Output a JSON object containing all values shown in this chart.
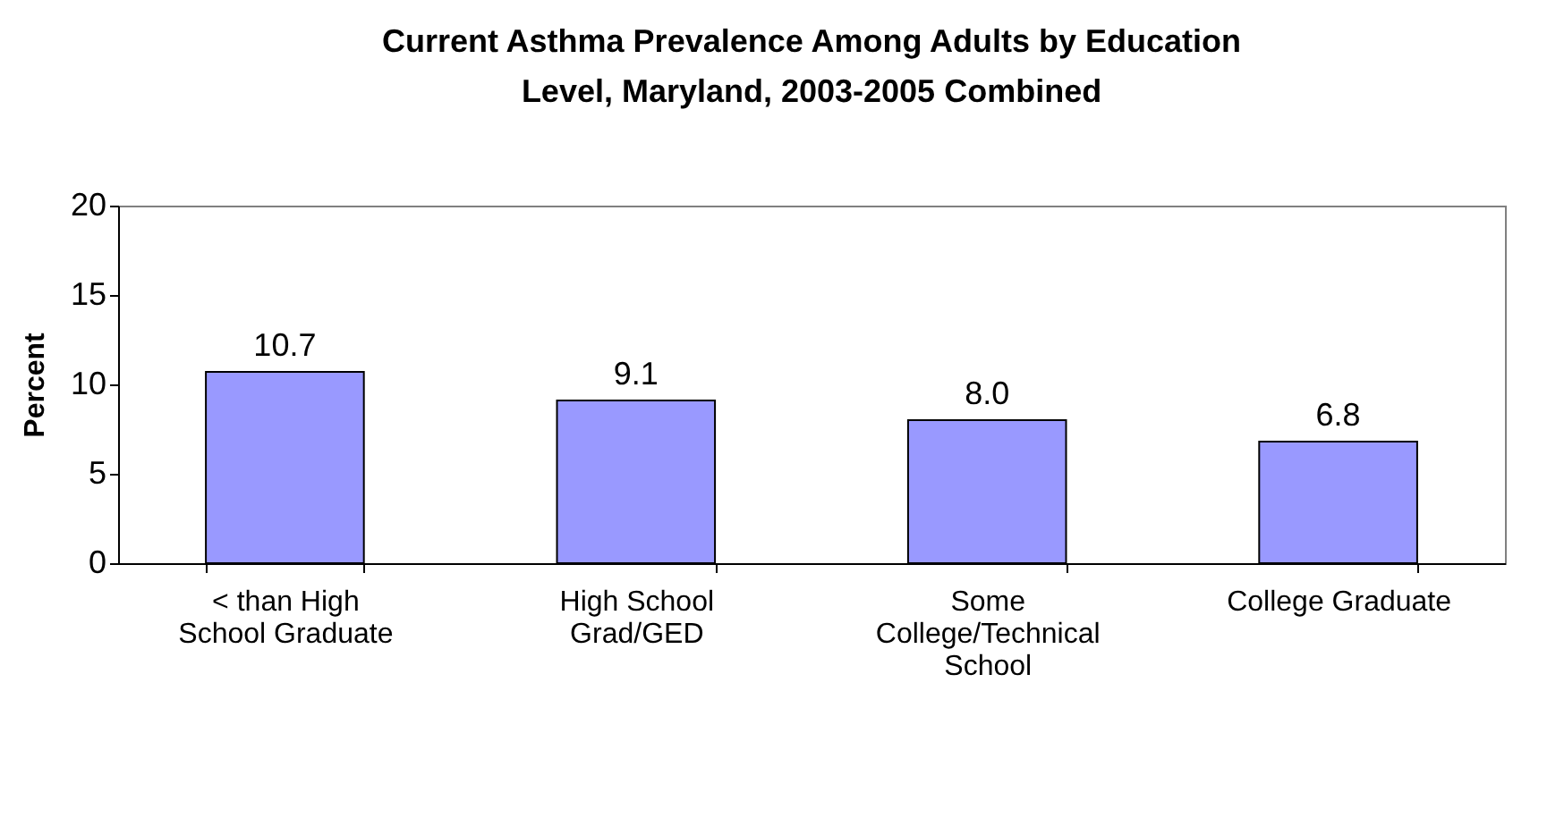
{
  "chart_data": {
    "type": "bar",
    "title": "Current Asthma Prevalence Among Adults by Education Level, Maryland, 2003-2005 Combined",
    "ylabel": "Percent",
    "categories": [
      "< than High School Graduate",
      "High School Grad/GED",
      "Some College/Technical School",
      "College Graduate"
    ],
    "values": [
      10.7,
      9.1,
      8.0,
      6.8
    ],
    "value_labels": [
      "10.7",
      "9.1",
      "8.0",
      "6.8"
    ],
    "color": "#9999ff",
    "ylim": [
      0,
      20
    ],
    "yticks": [
      0,
      5,
      10,
      15,
      20
    ],
    "grid": false
  }
}
